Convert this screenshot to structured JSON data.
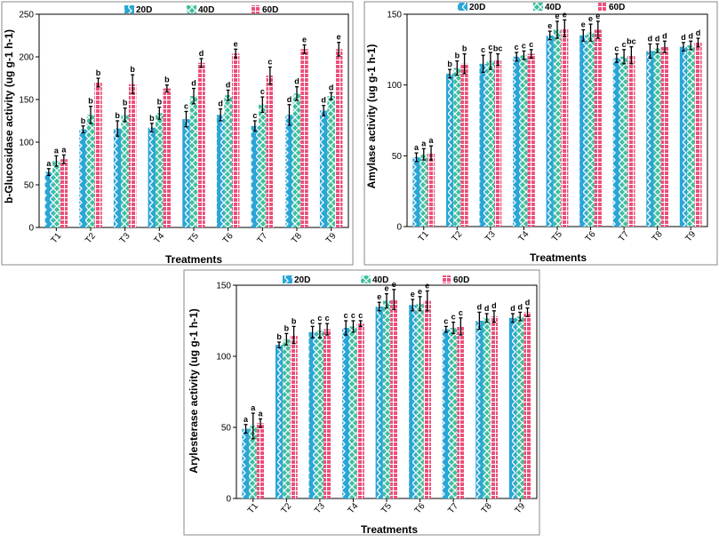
{
  "colors": {
    "20D": "#2aa6d6",
    "40D": "#3fbf9f",
    "60D": "#ee4f7a",
    "stripe": "#ffffff"
  },
  "chart_data": [
    {
      "type": "bar",
      "title": "",
      "xlabel": "Treatments",
      "ylabel": "b-Glucosidase activity (ug g-1 h-1)",
      "ylim": [
        0,
        250
      ],
      "yticks": [
        "0",
        "50",
        "100",
        "150",
        "200",
        "250"
      ],
      "legend_position": "top",
      "categories": [
        "T1",
        "T2",
        "T3",
        "T4",
        "T5",
        "T6",
        "T7",
        "T8",
        "T9"
      ],
      "series": [
        {
          "name": "20D",
          "values": [
            65,
            115,
            116,
            117,
            127,
            132,
            119,
            132,
            137
          ],
          "errors": [
            4,
            4,
            9,
            5,
            9,
            7,
            6,
            12,
            6
          ],
          "letters": [
            "a",
            "b",
            "b",
            "b",
            "c",
            "d",
            "c",
            "d",
            "d"
          ]
        },
        {
          "name": "40D",
          "values": [
            78,
            132,
            132,
            134,
            154,
            155,
            144,
            157,
            154
          ],
          "errors": [
            6,
            10,
            8,
            7,
            9,
            6,
            9,
            8,
            4
          ],
          "letters": [
            "a",
            "b",
            "b",
            "b",
            "d",
            "d",
            "c",
            "d",
            "d"
          ]
        },
        {
          "name": "60D",
          "values": [
            80,
            170,
            168,
            163,
            193,
            204,
            178,
            209,
            209
          ],
          "errors": [
            5,
            5,
            11,
            4,
            5,
            5,
            10,
            5,
            8
          ],
          "letters": [
            "a",
            "b",
            "b",
            "b",
            "d",
            "e",
            "c",
            "e",
            "e"
          ]
        }
      ]
    },
    {
      "type": "bar",
      "title": "",
      "xlabel": "Treatments",
      "ylabel": "Amylase activity (ug g-1 h-1)",
      "ylim": [
        0,
        150
      ],
      "yticks": [
        "0",
        "50",
        "100",
        "150"
      ],
      "legend_position": "top",
      "categories": [
        "T1",
        "T2",
        "T3",
        "T4",
        "T5",
        "T6",
        "T7",
        "T8",
        "T9"
      ],
      "series": [
        {
          "name": "20D",
          "values": [
            49,
            108,
            115,
            120,
            135,
            135,
            119,
            124,
            127
          ],
          "errors": [
            3,
            3,
            6,
            3,
            3,
            4,
            3,
            5,
            3
          ],
          "letters": [
            "a",
            "b",
            "c",
            "c",
            "e",
            "e",
            "c",
            "d",
            "d"
          ]
        },
        {
          "name": "40D",
          "values": [
            51,
            112,
            117,
            121,
            139,
            137,
            120,
            126,
            128
          ],
          "errors": [
            4,
            5,
            6,
            3,
            6,
            6,
            5,
            3,
            3
          ],
          "letters": [
            "a",
            "b",
            "c",
            "c",
            "e",
            "e",
            "c",
            "d",
            "d"
          ]
        },
        {
          "name": "60D",
          "values": [
            52,
            115,
            118,
            122,
            140,
            139,
            121,
            127,
            130
          ],
          "errors": [
            5,
            7,
            4,
            3,
            6,
            6,
            6,
            4,
            3
          ],
          "letters": [
            "a",
            "b",
            "bc",
            "c",
            "e",
            "e",
            "bc",
            "d",
            "d"
          ]
        }
      ]
    },
    {
      "type": "bar",
      "title": "",
      "xlabel": "Treatments",
      "ylabel": "Arylesterase activity (ug g-1 h-1)",
      "ylim": [
        0,
        150
      ],
      "yticks": [
        "0",
        "50",
        "100",
        "150"
      ],
      "legend_position": "top",
      "categories": [
        "T1",
        "T2",
        "T3",
        "T4",
        "T5",
        "T6",
        "T7",
        "T8",
        "T9"
      ],
      "series": [
        {
          "name": "20D",
          "values": [
            49,
            108,
            117,
            120,
            135,
            136,
            119,
            125,
            127
          ],
          "errors": [
            3,
            2,
            4,
            5,
            3,
            4,
            2,
            6,
            3
          ],
          "letters": [
            "a",
            "b",
            "c",
            "c",
            "e",
            "e",
            "c",
            "d",
            "d"
          ]
        },
        {
          "name": "40D",
          "values": [
            51,
            112,
            118,
            121,
            139,
            137,
            120,
            127,
            128
          ],
          "errors": [
            9,
            4,
            5,
            4,
            5,
            5,
            4,
            3,
            3
          ],
          "letters": [
            "a",
            "b",
            "c",
            "c",
            "e",
            "e",
            "c",
            "d",
            "d"
          ]
        },
        {
          "name": "60D",
          "values": [
            53,
            115,
            119,
            123,
            140,
            139,
            121,
            128,
            131
          ],
          "errors": [
            3,
            6,
            4,
            2,
            7,
            7,
            6,
            4,
            3
          ],
          "letters": [
            "a",
            "b",
            "c",
            "c",
            "e",
            "e",
            "c",
            "d",
            "d"
          ]
        }
      ]
    }
  ]
}
